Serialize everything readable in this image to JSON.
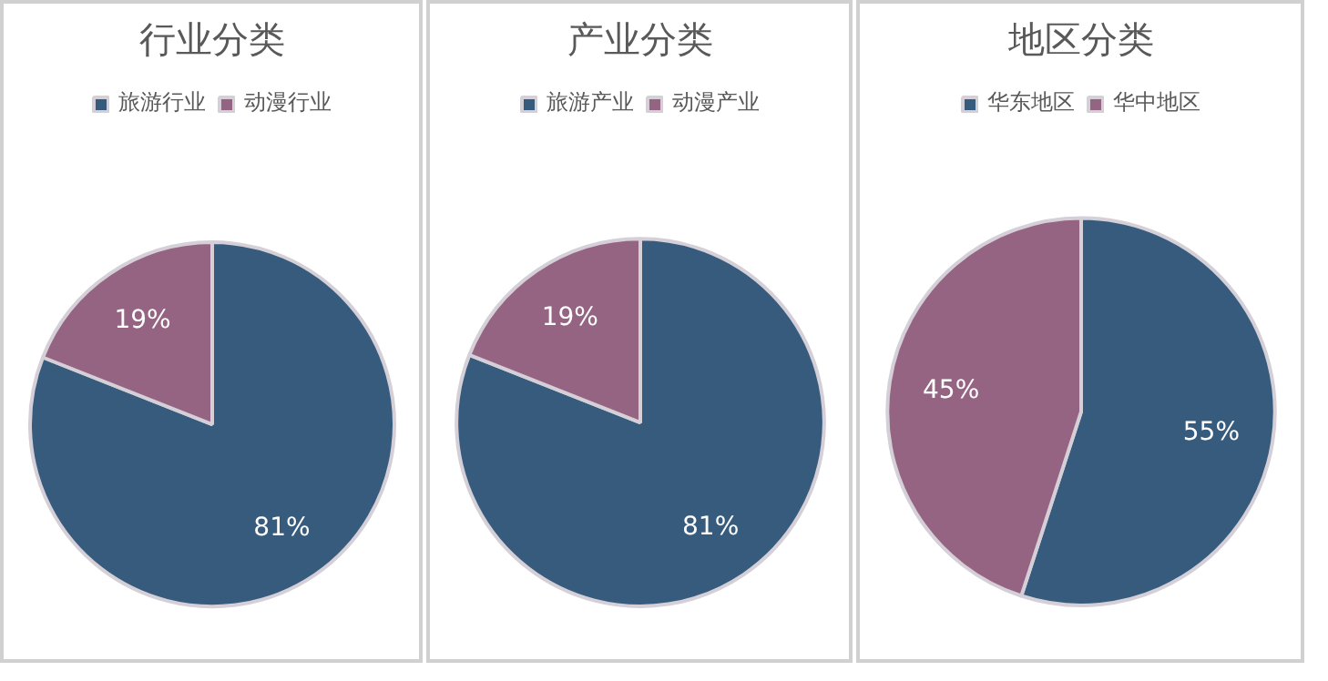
{
  "chart_data": [
    {
      "type": "pie",
      "title": "行业分类",
      "categories": [
        "旅游行业",
        "动漫行业"
      ],
      "values": [
        81,
        19
      ],
      "value_labels": [
        "81%",
        "19%"
      ],
      "colors": [
        "#365b7d",
        "#956482"
      ],
      "legend": "top"
    },
    {
      "type": "pie",
      "title": "产业分类",
      "categories": [
        "旅游产业",
        "动漫产业"
      ],
      "values": [
        81,
        19
      ],
      "value_labels": [
        "81%",
        "19%"
      ],
      "colors": [
        "#365b7d",
        "#956482"
      ],
      "legend": "top"
    },
    {
      "type": "pie",
      "title": "地区分类",
      "categories": [
        "华东地区",
        "华中地区"
      ],
      "values": [
        55,
        45
      ],
      "value_labels": [
        "55%",
        "45%"
      ],
      "colors": [
        "#365b7d",
        "#956482"
      ],
      "legend": "top"
    }
  ]
}
